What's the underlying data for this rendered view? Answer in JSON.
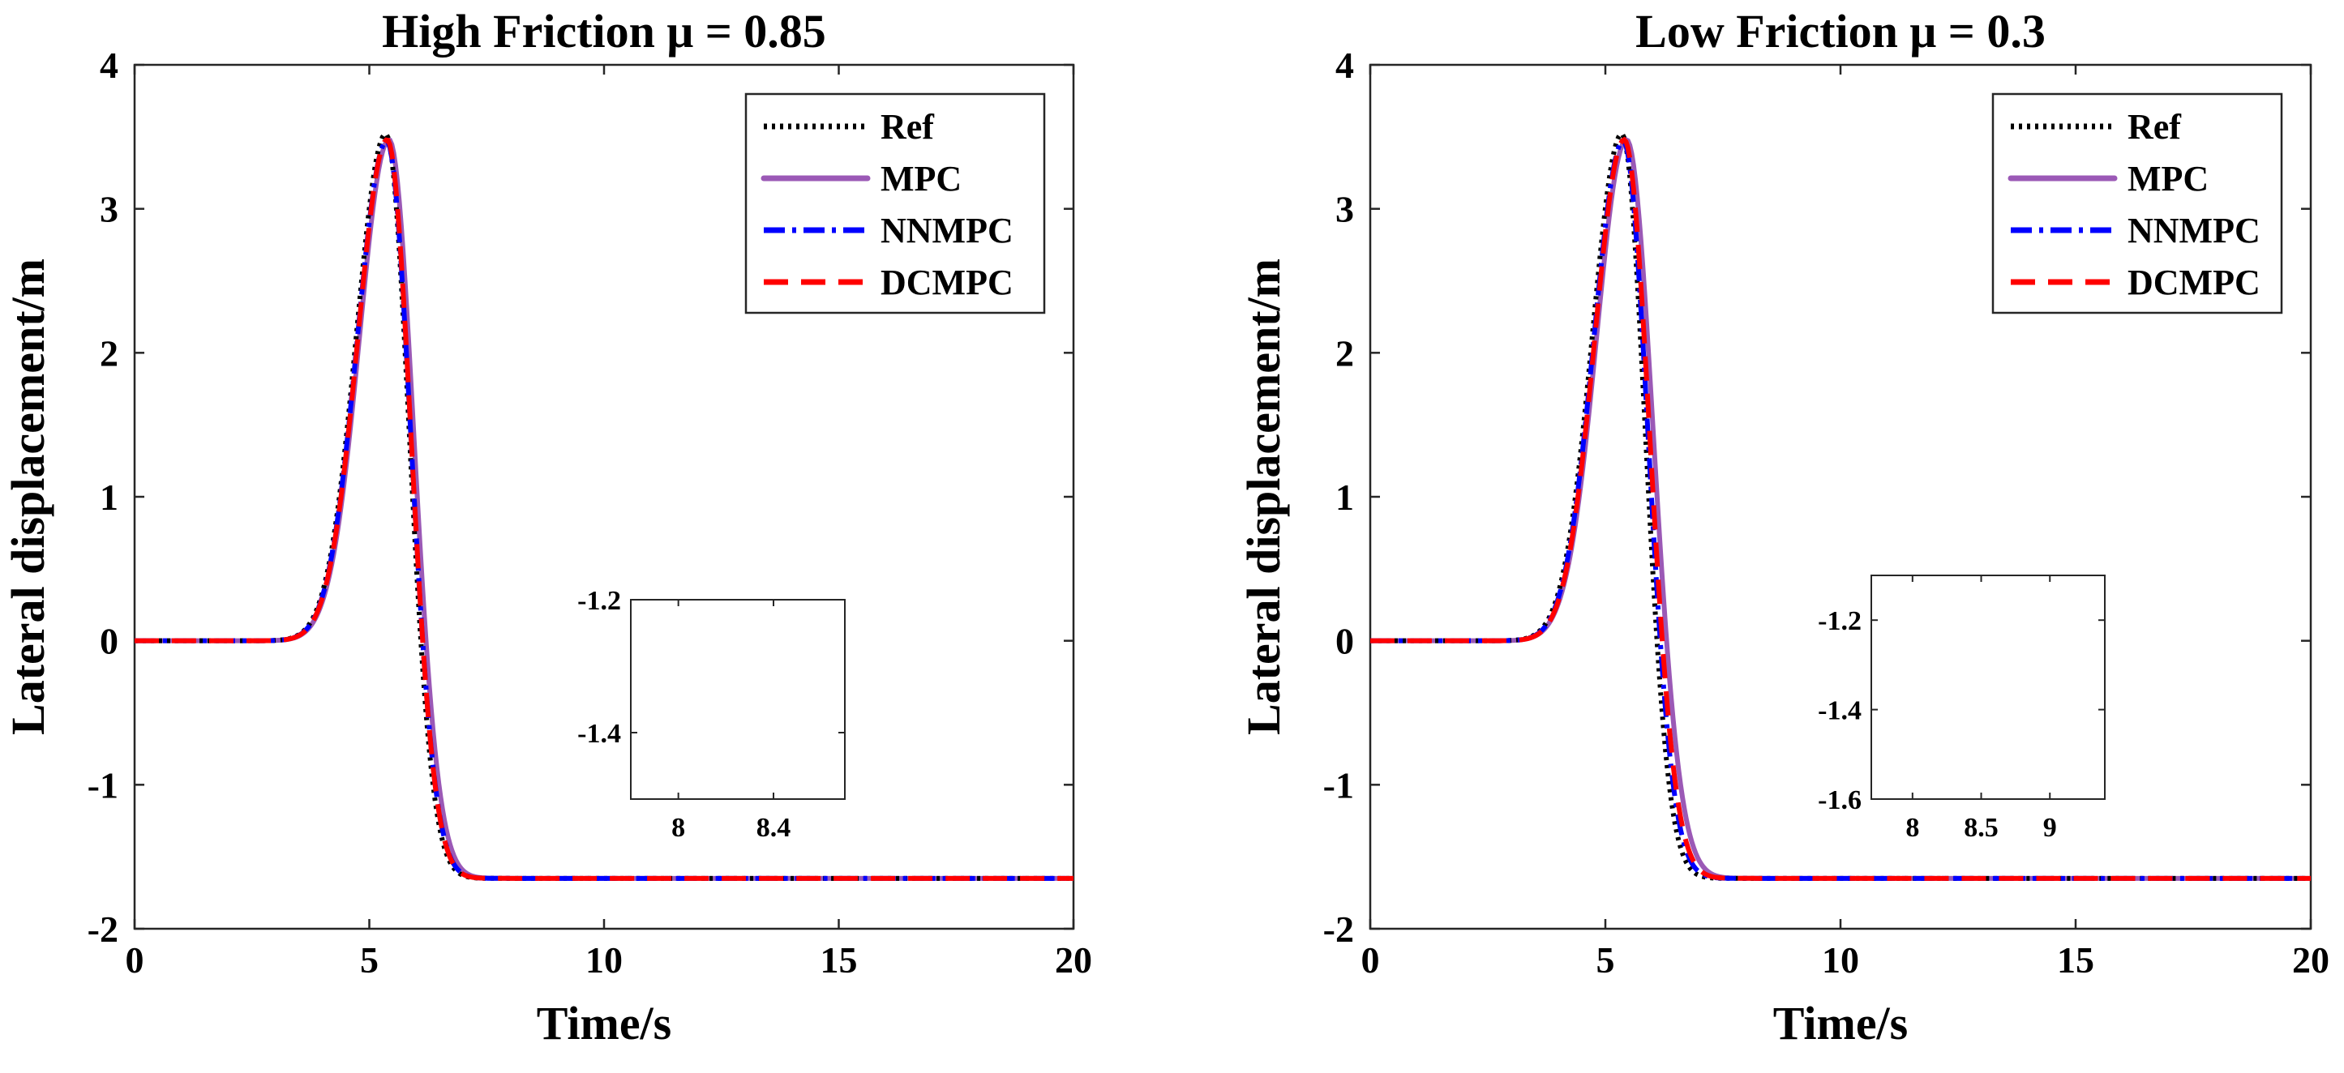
{
  "colors": {
    "ref": "#000000",
    "mpc": "#9b59b6",
    "nnmpc": "#0000ff",
    "dcmpc": "#ff0000"
  },
  "chart_data": [
    {
      "type": "line",
      "title": "High Friction μ = 0.85",
      "xlabel": "Time/s",
      "ylabel": "Lateral displacement/m",
      "xlim": [
        0,
        20
      ],
      "ylim": [
        -2,
        4
      ],
      "xticks": [
        "0",
        "5",
        "10",
        "15",
        "20"
      ],
      "yticks": [
        "-2",
        "-1",
        "0",
        "1",
        "2",
        "3",
        "4"
      ],
      "legend": [
        "Ref",
        "MPC",
        "NNMPC",
        "DCMPC"
      ],
      "legend_position": "top-right",
      "curve_model": "each series follows a smooth lane-change profile: 0 at t=0, peak at t_peak, settling to the final value",
      "series": [
        {
          "name": "Ref",
          "style": "dotted",
          "peak": 3.52,
          "t_peak": 5.35,
          "final": -1.65,
          "rise_width": 0.88,
          "fall_width": 0.7
        },
        {
          "name": "MPC",
          "style": "solid",
          "peak": 3.48,
          "t_peak": 5.42,
          "final": -1.65,
          "rise_width": 0.89,
          "fall_width": 0.74
        },
        {
          "name": "NNMPC",
          "style": "dashdot",
          "peak": 3.47,
          "t_peak": 5.37,
          "final": -1.65,
          "rise_width": 0.88,
          "fall_width": 0.72
        },
        {
          "name": "DCMPC",
          "style": "dashed",
          "peak": 3.48,
          "t_peak": 5.38,
          "final": -1.65,
          "rise_width": 0.88,
          "fall_width": 0.71
        }
      ],
      "inset": {
        "xlim": [
          7.8,
          8.7
        ],
        "ylim": [
          -1.5,
          -1.2
        ],
        "xticks": [
          "8",
          "8.4"
        ],
        "yticks": [
          "-1.2",
          "-1.4"
        ]
      }
    },
    {
      "type": "line",
      "title": "Low Friction μ = 0.3",
      "xlabel": "Time/s",
      "ylabel": "Lateral displacement/m",
      "xlim": [
        0,
        20
      ],
      "ylim": [
        -2,
        4
      ],
      "xticks": [
        "0",
        "5",
        "10",
        "15",
        "20"
      ],
      "yticks": [
        "-2",
        "-1",
        "0",
        "1",
        "2",
        "3",
        "4"
      ],
      "legend": [
        "Ref",
        "MPC",
        "NNMPC",
        "DCMPC"
      ],
      "legend_position": "top-right",
      "curve_model": "each series follows a smooth lane-change profile: 0 at t=0, peak at t_peak, settling to the final value",
      "series": [
        {
          "name": "Ref",
          "style": "dotted",
          "peak": 3.52,
          "t_peak": 5.35,
          "final": -1.65,
          "rise_width": 0.88,
          "fall_width": 0.7
        },
        {
          "name": "MPC",
          "style": "solid",
          "peak": 3.48,
          "t_peak": 5.45,
          "final": -1.65,
          "rise_width": 0.9,
          "fall_width": 0.8
        },
        {
          "name": "NNMPC",
          "style": "dashdot",
          "peak": 3.47,
          "t_peak": 5.38,
          "final": -1.65,
          "rise_width": 0.88,
          "fall_width": 0.74
        },
        {
          "name": "DCMPC",
          "style": "dashed",
          "peak": 3.48,
          "t_peak": 5.4,
          "final": -1.65,
          "rise_width": 0.88,
          "fall_width": 0.76
        }
      ],
      "inset": {
        "xlim": [
          7.7,
          9.4
        ],
        "ylim": [
          -1.6,
          -1.1
        ],
        "xticks": [
          "8",
          "8.5",
          "9"
        ],
        "yticks": [
          "-1.2",
          "-1.4",
          "-1.6"
        ]
      }
    }
  ]
}
